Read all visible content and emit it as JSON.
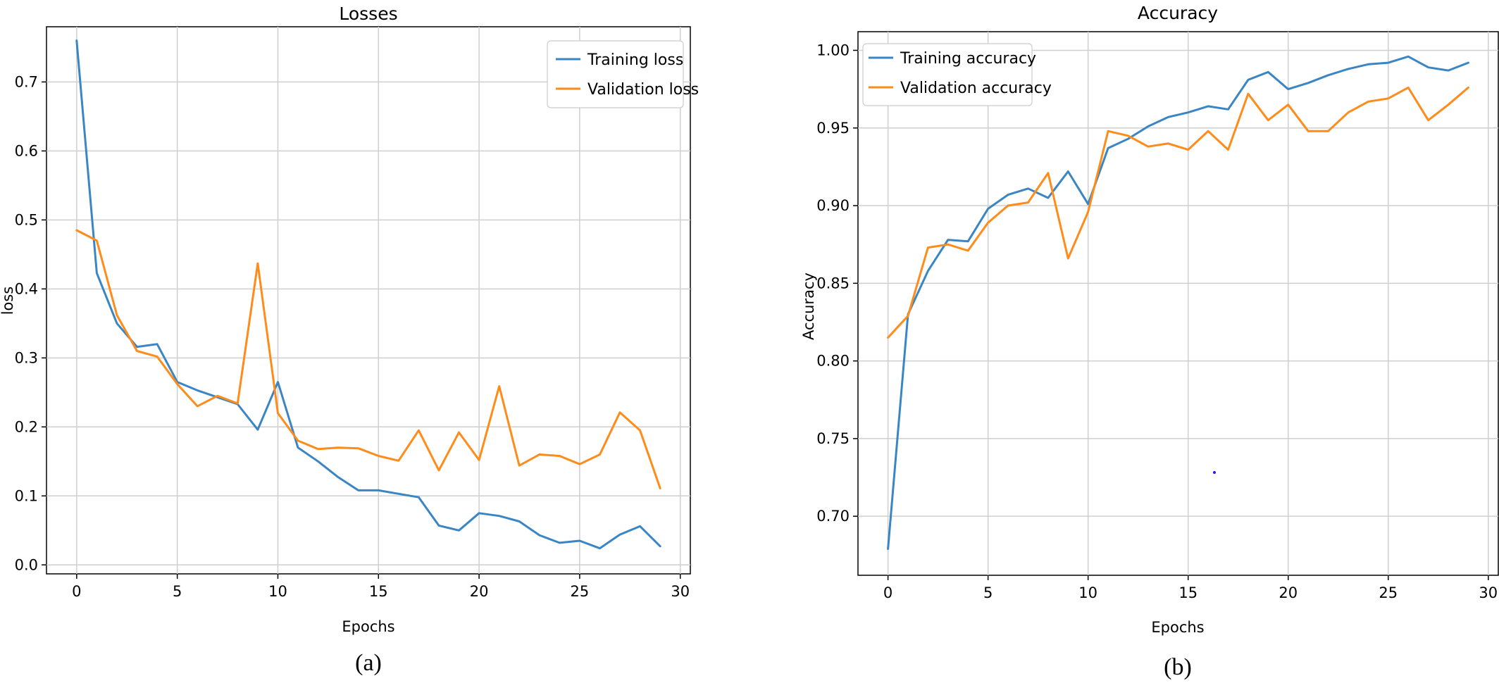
{
  "colors": {
    "training": "#3a86c4",
    "validation": "#ff8c1a",
    "grid": "#cfcfcf"
  },
  "chart_data": [
    {
      "type": "line",
      "title": "Losses",
      "xlabel": "Epochs",
      "ylabel": "loss",
      "caption": "(a)",
      "xlim": [
        -1.5,
        30.5
      ],
      "ylim": [
        -0.013,
        0.78
      ],
      "xticks": [
        0,
        5,
        10,
        15,
        20,
        25,
        30
      ],
      "yticks": [
        0.0,
        0.1,
        0.2,
        0.3,
        0.4,
        0.5,
        0.6,
        0.7
      ],
      "ytick_labels": [
        "0.0",
        "0.1",
        "0.2",
        "0.3",
        "0.4",
        "0.5",
        "0.6",
        "0.7"
      ],
      "xtick_labels": [
        "0",
        "5",
        "10",
        "15",
        "20",
        "25",
        "30"
      ],
      "grid": true,
      "legend_position": "top-right",
      "x": [
        0,
        1,
        2,
        3,
        4,
        5,
        6,
        7,
        8,
        9,
        10,
        11,
        12,
        13,
        14,
        15,
        16,
        17,
        18,
        19,
        20,
        21,
        22,
        23,
        24,
        25,
        26,
        27,
        28,
        29
      ],
      "series": [
        {
          "name": "Training loss",
          "color_key": "training",
          "values": [
            0.76,
            0.423,
            0.35,
            0.316,
            0.32,
            0.265,
            0.253,
            0.243,
            0.233,
            0.196,
            0.265,
            0.17,
            0.15,
            0.127,
            0.108,
            0.108,
            0.103,
            0.098,
            0.057,
            0.05,
            0.075,
            0.071,
            0.063,
            0.043,
            0.032,
            0.035,
            0.024,
            0.044,
            0.056,
            0.027
          ]
        },
        {
          "name": "Validation loss",
          "color_key": "validation",
          "values": [
            0.485,
            0.47,
            0.362,
            0.31,
            0.302,
            0.262,
            0.23,
            0.245,
            0.234,
            0.437,
            0.22,
            0.18,
            0.168,
            0.17,
            0.169,
            0.158,
            0.151,
            0.195,
            0.137,
            0.192,
            0.152,
            0.259,
            0.144,
            0.16,
            0.158,
            0.146,
            0.16,
            0.221,
            0.195,
            0.111
          ]
        }
      ]
    },
    {
      "type": "line",
      "title": "Accuracy",
      "xlabel": "Epochs",
      "ylabel": "Accuracy",
      "caption": "(b)",
      "xlim": [
        -1.5,
        30.5
      ],
      "ylim": [
        0.662,
        1.012
      ],
      "xticks": [
        0,
        5,
        10,
        15,
        20,
        25,
        30
      ],
      "yticks": [
        0.7,
        0.75,
        0.8,
        0.85,
        0.9,
        0.95,
        1.0
      ],
      "ytick_labels": [
        "0.70",
        "0.75",
        "0.80",
        "0.85",
        "0.90",
        "0.95",
        "1.00"
      ],
      "xtick_labels": [
        "0",
        "5",
        "10",
        "15",
        "20",
        "25",
        "30"
      ],
      "grid": true,
      "legend_position": "top-left",
      "x": [
        0,
        1,
        2,
        3,
        4,
        5,
        6,
        7,
        8,
        9,
        10,
        11,
        12,
        13,
        14,
        15,
        16,
        17,
        18,
        19,
        20,
        21,
        22,
        23,
        24,
        25,
        26,
        27,
        28,
        29
      ],
      "series": [
        {
          "name": "Training accuracy",
          "color_key": "training",
          "values": [
            0.679,
            0.83,
            0.858,
            0.878,
            0.877,
            0.898,
            0.907,
            0.911,
            0.905,
            0.922,
            0.901,
            0.937,
            0.943,
            0.951,
            0.957,
            0.96,
            0.964,
            0.962,
            0.981,
            0.986,
            0.975,
            0.979,
            0.984,
            0.988,
            0.991,
            0.992,
            0.996,
            0.989,
            0.987,
            0.992
          ]
        },
        {
          "name": "Validation accuracy",
          "color_key": "validation",
          "values": [
            0.815,
            0.829,
            0.873,
            0.875,
            0.871,
            0.889,
            0.9,
            0.902,
            0.921,
            0.866,
            0.896,
            0.948,
            0.945,
            0.938,
            0.94,
            0.936,
            0.948,
            0.936,
            0.972,
            0.955,
            0.965,
            0.948,
            0.948,
            0.96,
            0.967,
            0.969,
            0.976,
            0.955,
            0.965,
            0.976
          ]
        }
      ]
    }
  ]
}
